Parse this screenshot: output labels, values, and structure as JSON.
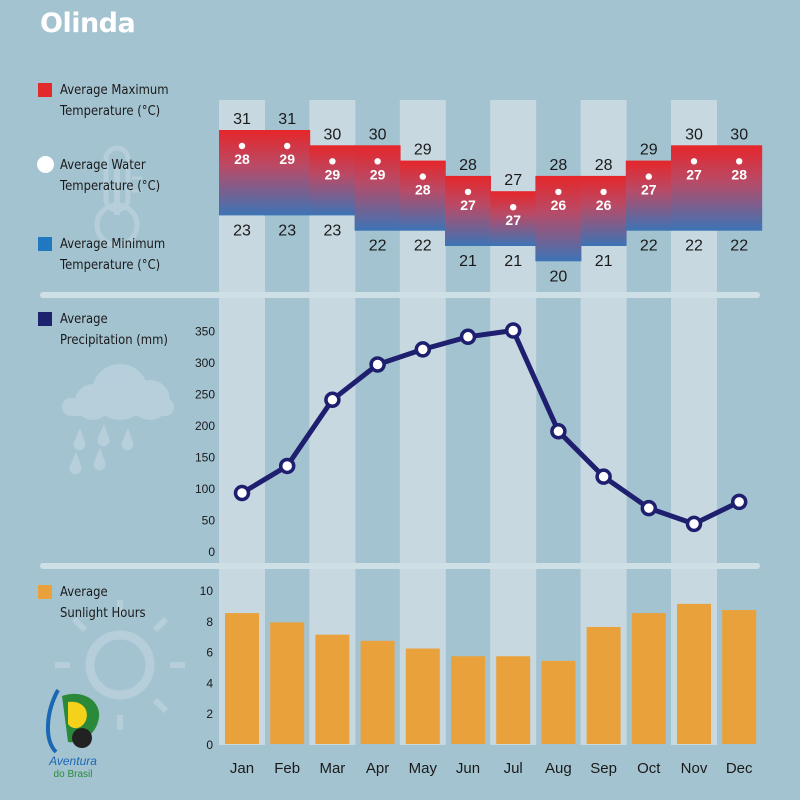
{
  "title": "Olinda",
  "legend": {
    "max_temp": {
      "line1": "Average Maximum",
      "line2": "Temperature (°C)",
      "color": "#e12a29"
    },
    "water_temp": {
      "line1": "Average Water",
      "line2": "Temperature (°C)",
      "color": "#ffffff"
    },
    "min_temp": {
      "line1": "Average Minimum",
      "line2": "Temperature (°C)",
      "color": "#1f78c0"
    },
    "precip": {
      "line1": "Average",
      "line2": "Precipitation (mm)",
      "color": "#1e236e"
    },
    "sunlight": {
      "line1": "Average",
      "line2": "Sunlight Hours",
      "color": "#e9a23b"
    }
  },
  "logo": {
    "line1": "Aventura",
    "line2": "do Brasil"
  },
  "chart_data": [
    {
      "type": "range-bar",
      "categories": [
        "Jan",
        "Feb",
        "Mar",
        "Apr",
        "May",
        "Jun",
        "Jul",
        "Aug",
        "Sep",
        "Oct",
        "Nov",
        "Dec"
      ],
      "series": [
        {
          "name": "Average Maximum Temperature (°C)",
          "values": [
            31,
            31,
            30,
            30,
            29,
            28,
            27,
            28,
            28,
            29,
            30,
            30
          ]
        },
        {
          "name": "Average Water Temperature (°C)",
          "values": [
            28,
            29,
            29,
            29,
            28,
            27,
            27,
            26,
            26,
            27,
            27,
            28
          ]
        },
        {
          "name": "Average Minimum Temperature (°C)",
          "values": [
            23,
            23,
            23,
            22,
            22,
            21,
            21,
            20,
            21,
            22,
            22,
            22
          ]
        }
      ]
    },
    {
      "type": "line",
      "categories": [
        "Jan",
        "Feb",
        "Mar",
        "Apr",
        "May",
        "Jun",
        "Jul",
        "Aug",
        "Sep",
        "Oct",
        "Nov",
        "Dec"
      ],
      "series": [
        {
          "name": "Average Precipitation (mm)",
          "values": [
            92,
            135,
            240,
            296,
            320,
            340,
            350,
            190,
            118,
            68,
            43,
            78
          ]
        }
      ],
      "yticks": [
        0,
        50,
        100,
        150,
        200,
        250,
        300,
        350
      ],
      "ylim": [
        0,
        350
      ]
    },
    {
      "type": "bar",
      "categories": [
        "Jan",
        "Feb",
        "Mar",
        "Apr",
        "May",
        "Jun",
        "Jul",
        "Aug",
        "Sep",
        "Oct",
        "Nov",
        "Dec"
      ],
      "series": [
        {
          "name": "Average Sunlight Hours",
          "values": [
            8.5,
            7.9,
            7.1,
            6.7,
            6.2,
            5.7,
            5.7,
            5.4,
            7.6,
            8.5,
            9.1,
            8.7
          ]
        }
      ],
      "yticks": [
        0,
        2,
        4,
        6,
        8,
        10
      ],
      "ylim": [
        0,
        10
      ]
    }
  ]
}
